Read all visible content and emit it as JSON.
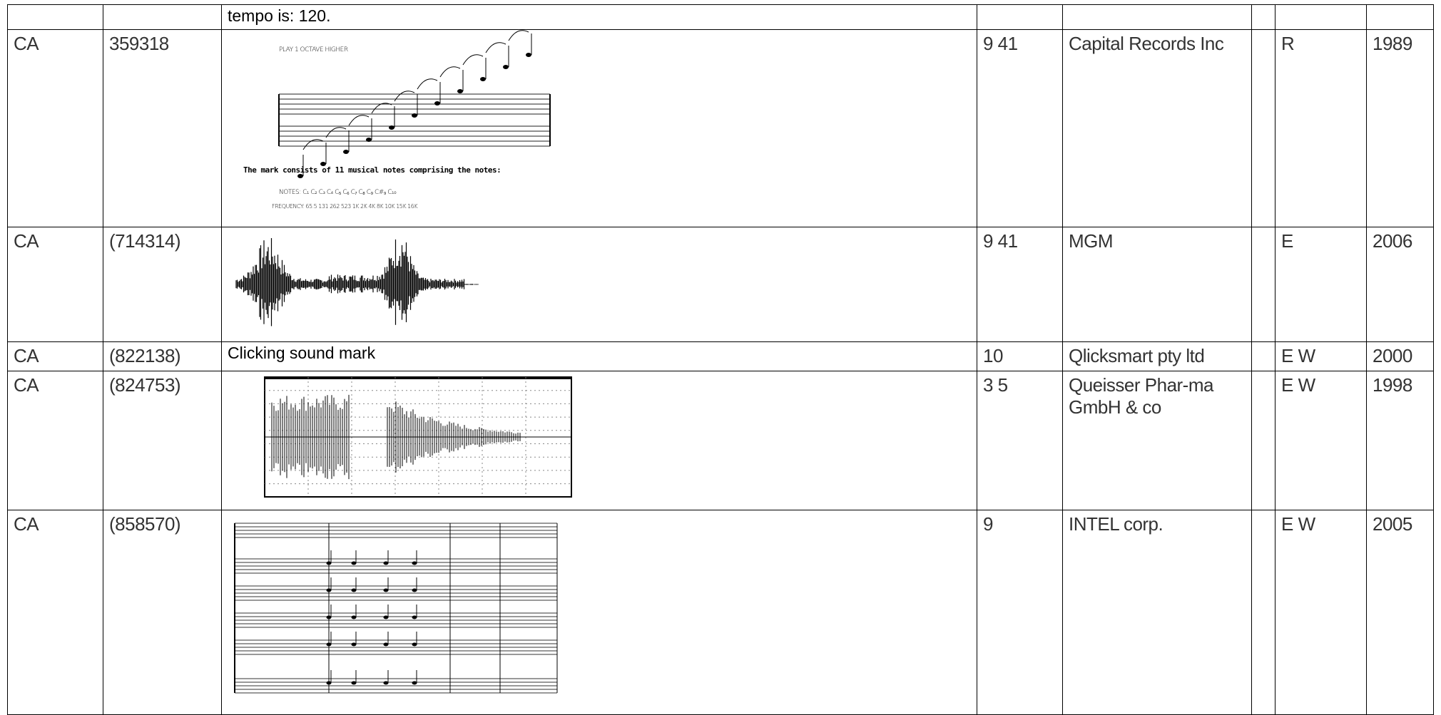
{
  "table": {
    "rows": [
      {
        "mark": "tempo is: 120."
      },
      {
        "country": "CA",
        "number": "359318",
        "mark_text": "The mark consists of 11 musical notes comprising the notes:",
        "class": "9 41",
        "owner": "Capital Records Inc",
        "type": "R",
        "year": "1989"
      },
      {
        "country": "CA",
        "number": "(714314)",
        "class": "9 41",
        "owner": "MGM",
        "type": "E",
        "year": "2006"
      },
      {
        "country": "CA",
        "number": "(822138)",
        "mark": "Clicking sound mark",
        "class": "10",
        "owner": "Qlicksmart pty ltd",
        "type": "E W",
        "year": "2000"
      },
      {
        "country": "CA",
        "number": "(824753)",
        "class": "3 5",
        "owner": "Queisser Phar-ma GmbH & co",
        "type": "E W",
        "year": "1998"
      },
      {
        "country": "CA",
        "number": "(858570)",
        "class": "9",
        "owner": "INTEL corp.",
        "type": "E W",
        "year": "2005"
      }
    ]
  }
}
